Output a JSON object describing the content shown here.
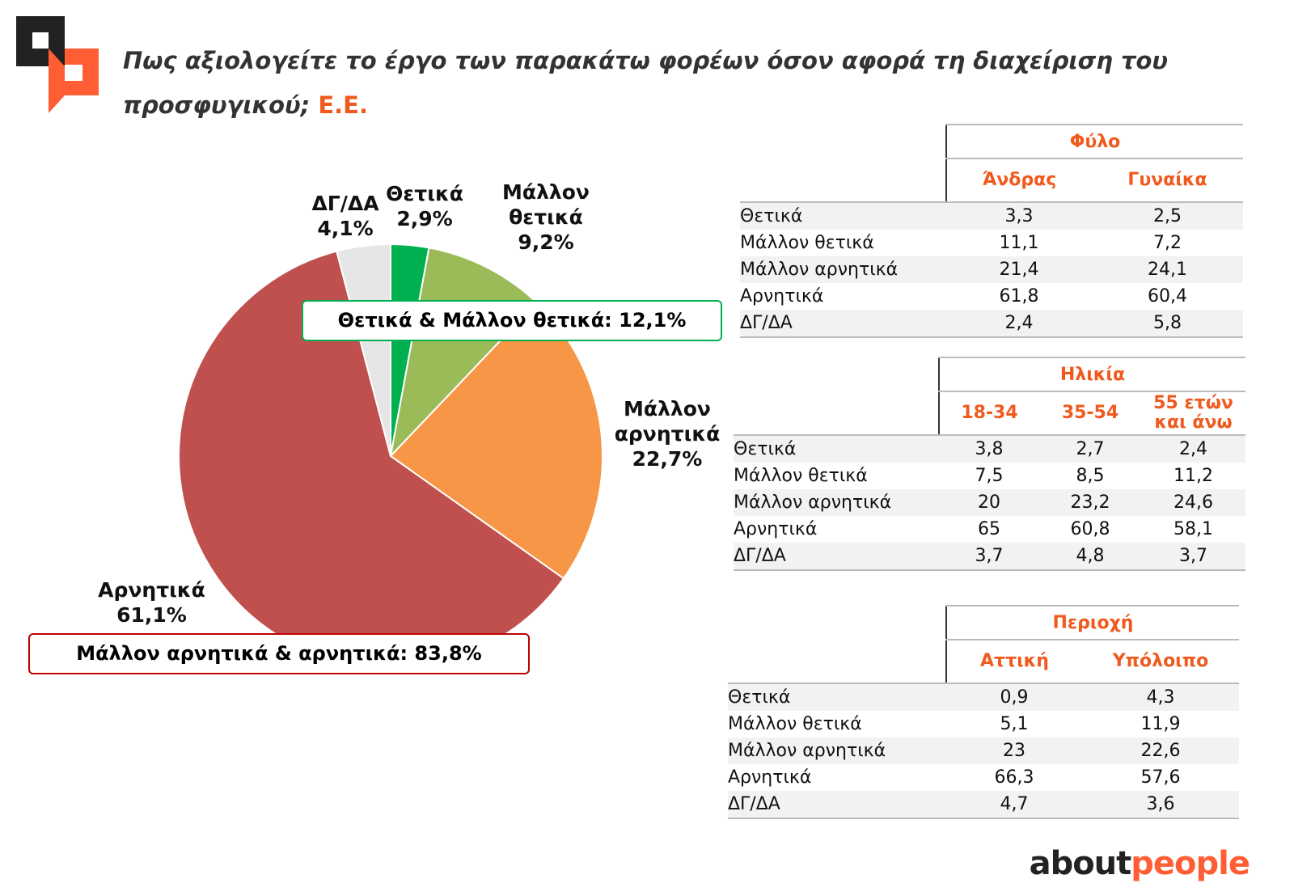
{
  "title": {
    "text": "Πως αξιολογείτε το έργο των παρακάτω φορέων όσον αφορά τη διαχείριση του προσφυγικού;",
    "highlight": "Ε.Ε."
  },
  "colors": {
    "accent": "#f05a1e",
    "green": "#00b050",
    "light_green": "#9bbb59",
    "orange": "#f79646",
    "red": "#c0504d",
    "gray": "#e6e6e6"
  },
  "chart_data": {
    "type": "pie",
    "slices": [
      {
        "name": "Θετικά",
        "value": 2.9,
        "label": "2,9%",
        "color": "#00b050"
      },
      {
        "name": "Μάλλον θετικά",
        "value": 9.2,
        "label": "9,2%",
        "color": "#9bbb59"
      },
      {
        "name": "Μάλλον αρνητικά",
        "value": 22.7,
        "label": "22,7%",
        "color": "#f79646"
      },
      {
        "name": "Αρνητικά",
        "value": 61.1,
        "label": "61,1%",
        "color": "#c0504d"
      },
      {
        "name": "ΔΓ/ΔΑ",
        "value": 4.1,
        "label": "4,1%",
        "color": "#e6e6e6"
      }
    ],
    "annotations": {
      "positive": "Θετικά & Μάλλον θετικά: 12,1%",
      "negative": "Μάλλον αρνητικά & αρνητικά: 83,8%"
    }
  },
  "tables": {
    "gender": {
      "group": "Φύλο",
      "cols": [
        "Άνδρας",
        "Γυναίκα"
      ],
      "rows": [
        {
          "label": "Θετικά",
          "values": [
            "3,3",
            "2,5"
          ]
        },
        {
          "label": "Μάλλον θετικά",
          "values": [
            "11,1",
            "7,2"
          ]
        },
        {
          "label": "Μάλλον αρνητικά",
          "values": [
            "21,4",
            "24,1"
          ]
        },
        {
          "label": "Αρνητικά",
          "values": [
            "61,8",
            "60,4"
          ]
        },
        {
          "label": "ΔΓ/ΔΑ",
          "values": [
            "2,4",
            "5,8"
          ]
        }
      ]
    },
    "age": {
      "group": "Ηλικία",
      "cols": [
        "18-34",
        "35-54",
        "55 ετών και άνω"
      ],
      "rows": [
        {
          "label": "Θετικά",
          "values": [
            "3,8",
            "2,7",
            "2,4"
          ]
        },
        {
          "label": "Μάλλον θετικά",
          "values": [
            "7,5",
            "8,5",
            "11,2"
          ]
        },
        {
          "label": "Μάλλον αρνητικά",
          "values": [
            "20",
            "23,2",
            "24,6"
          ]
        },
        {
          "label": "Αρνητικά",
          "values": [
            "65",
            "60,8",
            "58,1"
          ]
        },
        {
          "label": "ΔΓ/ΔΑ",
          "values": [
            "3,7",
            "4,8",
            "3,7"
          ]
        }
      ]
    },
    "region": {
      "group": "Περιοχή",
      "cols": [
        "Αττική",
        "Υπόλοιπο"
      ],
      "rows": [
        {
          "label": "Θετικά",
          "values": [
            "0,9",
            "4,3"
          ]
        },
        {
          "label": "Μάλλον θετικά",
          "values": [
            "5,1",
            "11,9"
          ]
        },
        {
          "label": "Μάλλον αρνητικά",
          "values": [
            "23",
            "22,6"
          ]
        },
        {
          "label": "Αρνητικά",
          "values": [
            "66,3",
            "57,6"
          ]
        },
        {
          "label": "ΔΓ/ΔΑ",
          "values": [
            "4,7",
            "3,6"
          ]
        }
      ]
    }
  },
  "brand": {
    "part1": "about",
    "part2": "people"
  }
}
